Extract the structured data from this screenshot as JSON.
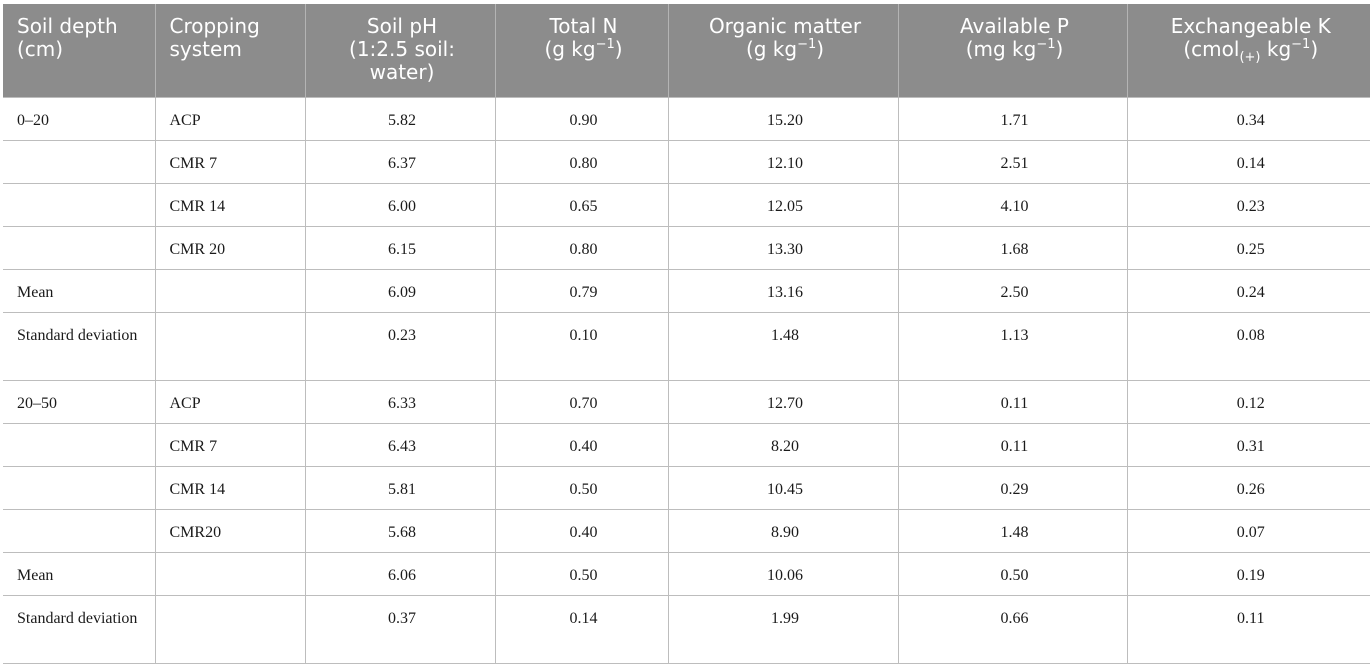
{
  "header": {
    "soil_depth": "Soil depth (cm)",
    "cropping_system": "Cropping system",
    "soil_ph_line1": "Soil pH",
    "soil_ph_line2": "(1:2.5 soil:",
    "soil_ph_line3": "water)",
    "total_n": "Total N",
    "total_n_unit_pre": "(g kg",
    "total_n_unit_sup": "−1",
    "total_n_unit_post": ")",
    "organic_matter": "Organic matter",
    "om_unit_pre": "(g kg",
    "om_unit_sup": "−1",
    "om_unit_post": ")",
    "available_p": "Available P",
    "ap_unit_pre": "(mg kg",
    "ap_unit_sup": "−1",
    "ap_unit_post": ")",
    "exchangeable_k": "Exchangeable K",
    "ek_unit_pre": "(cmol",
    "ek_unit_sub": "(+)",
    "ek_unit_mid": " kg",
    "ek_unit_sup": "−1",
    "ek_unit_post": ")"
  },
  "rows": [
    {
      "depth": "0–20",
      "system": "ACP",
      "ph": "5.82",
      "n": "0.90",
      "om": "15.20",
      "p": "1.71",
      "k": "0.34"
    },
    {
      "depth": "",
      "system": "CMR 7",
      "ph": "6.37",
      "n": "0.80",
      "om": "12.10",
      "p": "2.51",
      "k": "0.14"
    },
    {
      "depth": "",
      "system": "CMR 14",
      "ph": "6.00",
      "n": "0.65",
      "om": "12.05",
      "p": "4.10",
      "k": "0.23"
    },
    {
      "depth": "",
      "system": "CMR 20",
      "ph": "6.15",
      "n": "0.80",
      "om": "13.30",
      "p": "1.68",
      "k": "0.25"
    },
    {
      "depth": "Mean",
      "system": "",
      "ph": "6.09",
      "n": "0.79",
      "om": "13.16",
      "p": "2.50",
      "k": "0.24"
    },
    {
      "depth": "Standard deviation",
      "system": "",
      "ph": "0.23",
      "n": "0.10",
      "om": "1.48",
      "p": "1.13",
      "k": "0.08"
    },
    {
      "depth": "20–50",
      "system": "ACP",
      "ph": "6.33",
      "n": "0.70",
      "om": "12.70",
      "p": "0.11",
      "k": "0.12"
    },
    {
      "depth": "",
      "system": "CMR 7",
      "ph": "6.43",
      "n": "0.40",
      "om": "8.20",
      "p": "0.11",
      "k": "0.31"
    },
    {
      "depth": "",
      "system": "CMR 14",
      "ph": "5.81",
      "n": "0.50",
      "om": "10.45",
      "p": "0.29",
      "k": "0.26"
    },
    {
      "depth": "",
      "system": "CMR20",
      "ph": "5.68",
      "n": "0.40",
      "om": "8.90",
      "p": "1.48",
      "k": "0.07"
    },
    {
      "depth": "Mean",
      "system": "",
      "ph": "6.06",
      "n": "0.50",
      "om": "10.06",
      "p": "0.50",
      "k": "0.19"
    },
    {
      "depth": "Standard deviation",
      "system": "",
      "ph": "0.37",
      "n": "0.14",
      "om": "1.99",
      "p": "0.66",
      "k": "0.11"
    }
  ],
  "colors": {
    "header_bg": "#8c8c8c",
    "header_text": "#ffffff",
    "grid": "#bdbdbd"
  }
}
